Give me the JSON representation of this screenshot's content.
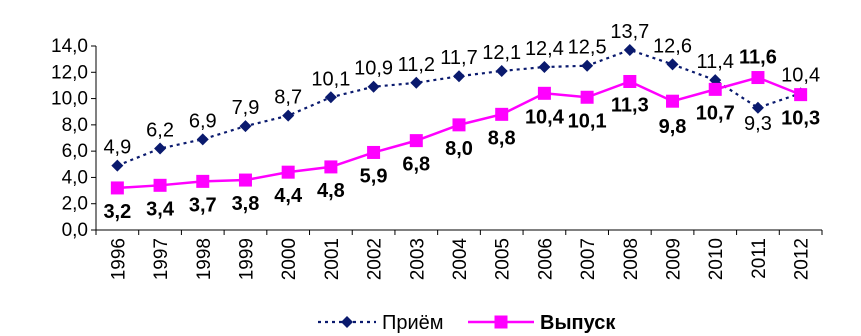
{
  "chart_data": {
    "type": "line",
    "x": [
      "1996",
      "1997",
      "1998",
      "1999",
      "2000",
      "2001",
      "2002",
      "2003",
      "2004",
      "2005",
      "2006",
      "2007",
      "2008",
      "2009",
      "2010",
      "2011",
      "2012"
    ],
    "ylim": [
      0,
      14
    ],
    "yticks": [
      "0,0",
      "2,0",
      "4,0",
      "6,0",
      "8,0",
      "10,0",
      "12,0",
      "14,0"
    ],
    "grid": false,
    "legend_position": "bottom",
    "series": [
      {
        "name": "Приём",
        "color": "#0a1a6e",
        "line_style": "dotted",
        "marker": "diamond",
        "values": [
          4.9,
          6.2,
          6.9,
          7.9,
          8.7,
          10.1,
          10.9,
          11.2,
          11.7,
          12.1,
          12.4,
          12.5,
          13.7,
          12.6,
          11.4,
          9.3,
          10.4
        ],
        "labels": [
          "4,9",
          "6,2",
          "6,9",
          "7,9",
          "8,7",
          "10,1",
          "10,9",
          "11,2",
          "11,7",
          "12,1",
          "12,4",
          "12,5",
          "13,7",
          "12,6",
          "11,4",
          "9,3",
          "10,4"
        ]
      },
      {
        "name": "Выпуск",
        "color": "#ff00ff",
        "line_style": "solid",
        "marker": "square",
        "values": [
          3.2,
          3.4,
          3.7,
          3.8,
          4.4,
          4.8,
          5.9,
          6.8,
          8.0,
          8.8,
          10.4,
          10.1,
          11.3,
          9.8,
          10.7,
          11.6,
          10.3
        ],
        "labels": [
          "3,2",
          "3,4",
          "3,7",
          "3,8",
          "4,4",
          "4,8",
          "5,9",
          "6,8",
          "8,0",
          "8,8",
          "10,4",
          "10,1",
          "11,3",
          "9,8",
          "10,7",
          "11,6",
          "10,3"
        ]
      }
    ]
  }
}
